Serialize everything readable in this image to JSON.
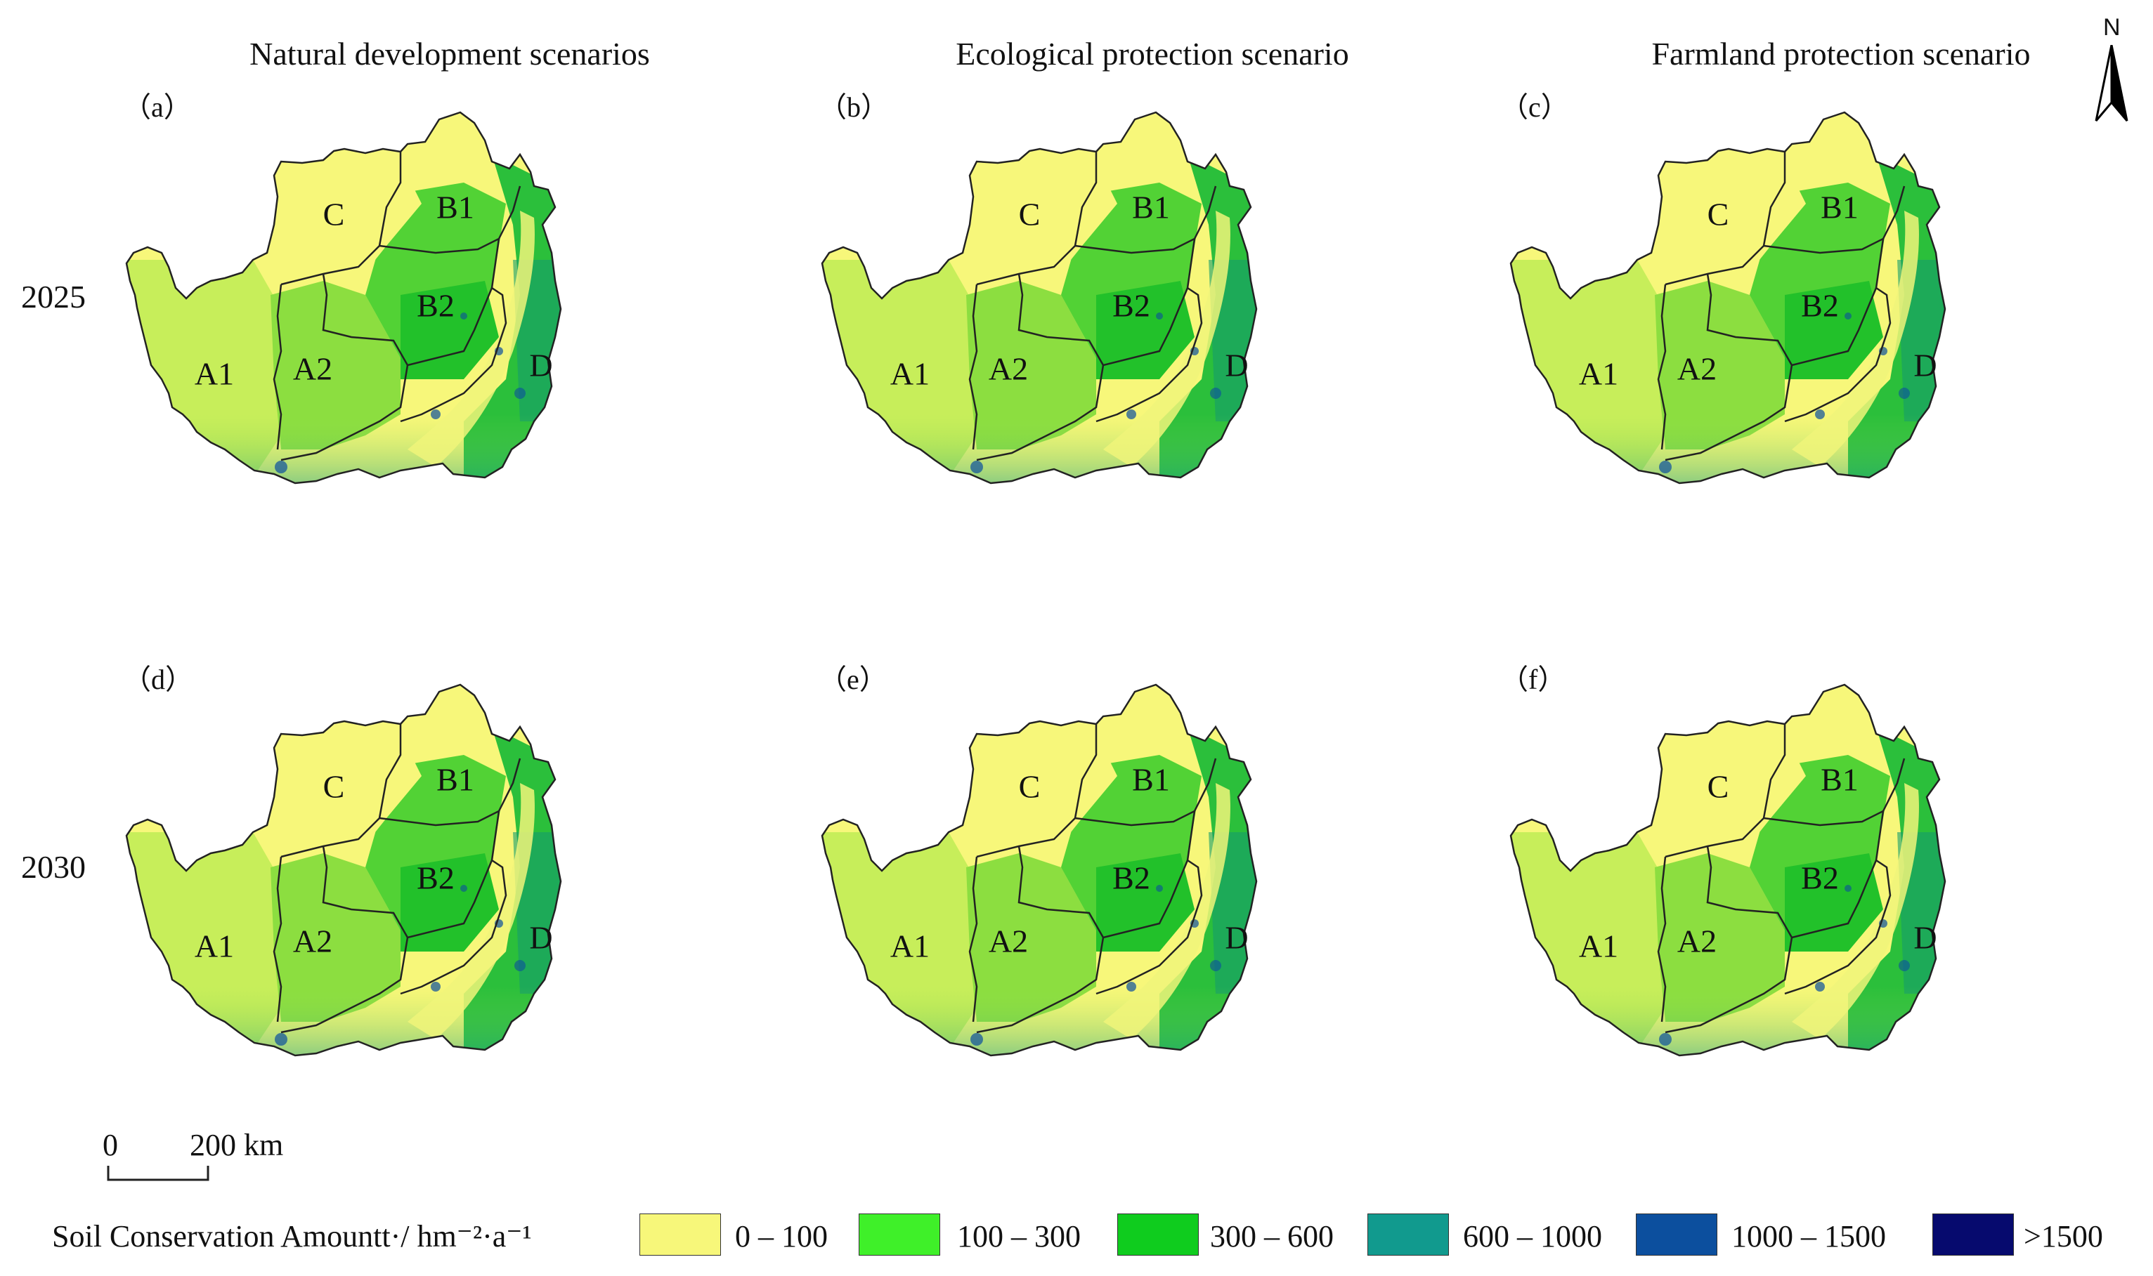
{
  "columns": [
    {
      "title": "Natural development scenarios"
    },
    {
      "title": "Ecological protection scenario"
    },
    {
      "title": "Farmland protection scenario"
    }
  ],
  "rows": [
    {
      "year": "2025"
    },
    {
      "year": "2030"
    }
  ],
  "panels": [
    {
      "label": "（a）"
    },
    {
      "label": "（b）"
    },
    {
      "label": "（c）"
    },
    {
      "label": "（d）"
    },
    {
      "label": "（e）"
    },
    {
      "label": "（f）"
    }
  ],
  "regions": [
    "C",
    "B1",
    "B2",
    "A1",
    "A2",
    "D"
  ],
  "north_arrow": {
    "label": "N"
  },
  "scale_bar": {
    "zero": "0",
    "distance": "200 km"
  },
  "legend": {
    "title": "Soil Conservation Amountt·/ hm⁻²·a⁻¹",
    "classes": [
      {
        "label": "0 – 100",
        "color": "#f7f77a"
      },
      {
        "label": "100 – 300",
        "color": "#3ff029"
      },
      {
        "label": "300 – 600",
        "color": "#0fcc1e"
      },
      {
        "label": "600 – 1000",
        "color": "#119a8e"
      },
      {
        "label": "1000 – 1500",
        "color": "#0c4f9e"
      },
      {
        "label": ">1500",
        "color": "#060a6e"
      }
    ]
  }
}
